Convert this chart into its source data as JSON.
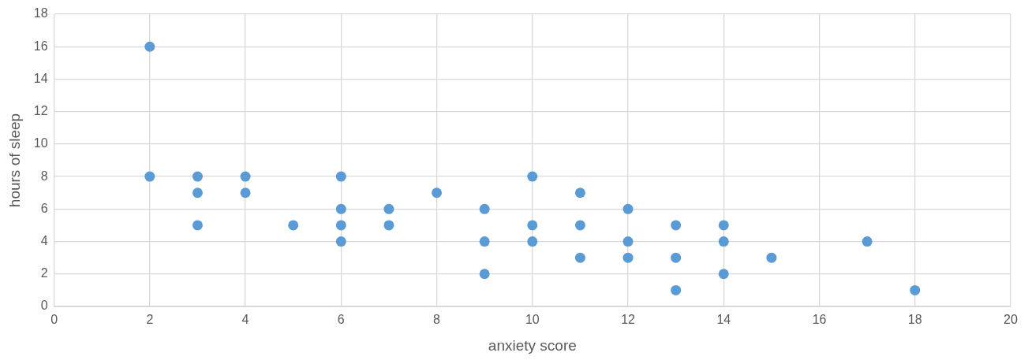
{
  "chart_data": {
    "type": "scatter",
    "xlabel": "anxiety score",
    "ylabel": "hours of sleep",
    "x": [
      2,
      2,
      3,
      3,
      3,
      4,
      4,
      5,
      6,
      6,
      6,
      6,
      7,
      7,
      8,
      9,
      9,
      9,
      10,
      10,
      10,
      11,
      11,
      11,
      12,
      12,
      12,
      13,
      13,
      13,
      14,
      14,
      14,
      15,
      17,
      18
    ],
    "series": [
      {
        "color": "#5b9bd5",
        "values": [
          16,
          8,
          8,
          7,
          5,
          8,
          7,
          5,
          8,
          6,
          5,
          4,
          6,
          5,
          7,
          6,
          4,
          2,
          8,
          5,
          4,
          7,
          5,
          3,
          6,
          4,
          3,
          5,
          3,
          1,
          5,
          4,
          2,
          3,
          4,
          1
        ]
      }
    ],
    "xlim": [
      0,
      20
    ],
    "xticks": [
      0,
      2,
      4,
      6,
      8,
      10,
      12,
      14,
      16,
      18,
      20
    ],
    "ylim": [
      0,
      18
    ],
    "yticks": [
      0,
      2,
      4,
      6,
      8,
      10,
      12,
      14,
      16,
      18
    ],
    "grid": true,
    "legend": false,
    "marker": "circle"
  }
}
